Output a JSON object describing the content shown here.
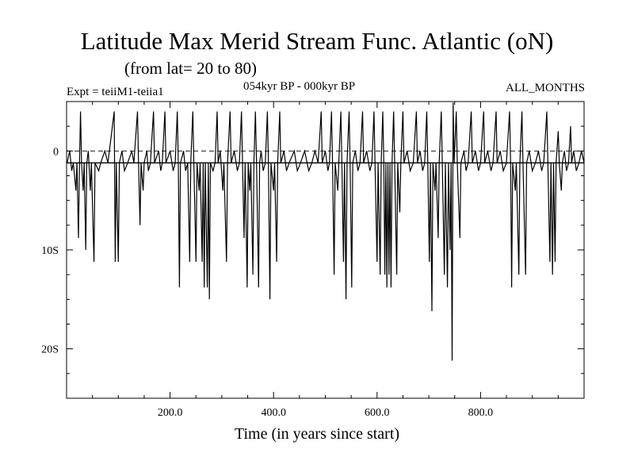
{
  "header": {
    "title": "Latitude Max Merid Stream Func. Atlantic (oN)",
    "subtitle": "(from lat= 20 to 80)",
    "experiment": "Expt = teiiM1-teiia1",
    "period": "054kyr BP - 000kyr BP",
    "months": "ALL_MONTHS"
  },
  "chart_data": {
    "type": "line",
    "xlabel": "Time (in years since start)",
    "ylabel": "",
    "xlim": [
      0,
      1000
    ],
    "ylim": [
      -25,
      5
    ],
    "x_ticks": [
      200,
      400,
      600,
      800
    ],
    "x_tick_labels": [
      "200.0",
      "400.0",
      "600.0",
      "800.0"
    ],
    "y_ticks": [
      0,
      -10,
      -20
    ],
    "y_tick_labels": [
      "0",
      "10S",
      "20S"
    ],
    "reference_lines": {
      "dashed_at": 0,
      "solid_at": -1.2
    },
    "series": [
      {
        "values": [
          [
            1,
            -1.2
          ],
          [
            6,
            0
          ],
          [
            10,
            -2
          ],
          [
            13,
            -1.2
          ],
          [
            18,
            -4
          ],
          [
            20,
            -1.2
          ],
          [
            23,
            -8.8
          ],
          [
            25,
            -1.2
          ],
          [
            27,
            4
          ],
          [
            29,
            -1.2
          ],
          [
            32,
            -4
          ],
          [
            34,
            -1.2
          ],
          [
            37,
            -10
          ],
          [
            39,
            -1.2
          ],
          [
            42,
            0
          ],
          [
            46,
            -4
          ],
          [
            48,
            -1.2
          ],
          [
            53,
            -11.2
          ],
          [
            55,
            -1.2
          ],
          [
            62,
            -2
          ],
          [
            66,
            -1.2
          ],
          [
            74,
            0
          ],
          [
            80,
            -1.2
          ],
          [
            92,
            4
          ],
          [
            94,
            -11.2
          ],
          [
            96,
            -1.2
          ],
          [
            100,
            -11.2
          ],
          [
            102,
            -1.2
          ],
          [
            107,
            0
          ],
          [
            112,
            -2
          ],
          [
            118,
            -1.2
          ],
          [
            126,
            0
          ],
          [
            130,
            -1.2
          ],
          [
            137,
            4
          ],
          [
            139,
            -1.2
          ],
          [
            142,
            -7.5
          ],
          [
            144,
            -1.2
          ],
          [
            148,
            -4
          ],
          [
            150,
            -1.2
          ],
          [
            155,
            0
          ],
          [
            158,
            -2
          ],
          [
            162,
            -1.2
          ],
          [
            168,
            4
          ],
          [
            170,
            -1.2
          ],
          [
            178,
            0
          ],
          [
            182,
            -2
          ],
          [
            185,
            -1.2
          ],
          [
            190,
            4
          ],
          [
            192,
            -1.2
          ],
          [
            200,
            0
          ],
          [
            206,
            -2
          ],
          [
            210,
            -1.2
          ],
          [
            214,
            4
          ],
          [
            216,
            -1.2
          ],
          [
            218,
            -13.8
          ],
          [
            220,
            -1.2
          ],
          [
            226,
            0
          ],
          [
            230,
            -2
          ],
          [
            234,
            -1.2
          ],
          [
            238,
            -11.2
          ],
          [
            240,
            -1.2
          ],
          [
            244,
            4
          ],
          [
            246,
            -1.2
          ],
          [
            250,
            -11.2
          ],
          [
            252,
            -1.2
          ],
          [
            256,
            -4
          ],
          [
            258,
            -1.2
          ],
          [
            262,
            -11.2
          ],
          [
            264,
            -1.2
          ],
          [
            266,
            -13.8
          ],
          [
            268,
            -1.2
          ],
          [
            272,
            -13.8
          ],
          [
            274,
            -1.2
          ],
          [
            276,
            -15
          ],
          [
            278,
            -1.2
          ],
          [
            283,
            -2
          ],
          [
            287,
            -1.2
          ],
          [
            291,
            4
          ],
          [
            293,
            -1.2
          ],
          [
            297,
            0
          ],
          [
            302,
            -4
          ],
          [
            304,
            -1.2
          ],
          [
            309,
            -11.2
          ],
          [
            311,
            -1.2
          ],
          [
            316,
            4
          ],
          [
            318,
            -1.2
          ],
          [
            324,
            0
          ],
          [
            330,
            -2
          ],
          [
            334,
            -1.2
          ],
          [
            338,
            4
          ],
          [
            340,
            -1.2
          ],
          [
            343,
            -8.8
          ],
          [
            345,
            -1.2
          ],
          [
            349,
            -13.8
          ],
          [
            351,
            -1.2
          ],
          [
            354,
            -4
          ],
          [
            356,
            -1.2
          ],
          [
            360,
            -12.5
          ],
          [
            362,
            -1.2
          ],
          [
            365,
            4
          ],
          [
            367,
            -1.2
          ],
          [
            371,
            -13.8
          ],
          [
            373,
            -1.2
          ],
          [
            376,
            0
          ],
          [
            380,
            -2
          ],
          [
            384,
            -1.2
          ],
          [
            388,
            4
          ],
          [
            390,
            -1.2
          ],
          [
            393,
            -15
          ],
          [
            395,
            -1.2
          ],
          [
            400,
            -4
          ],
          [
            402,
            -1.2
          ],
          [
            406,
            -11.2
          ],
          [
            408,
            -1.2
          ],
          [
            412,
            4
          ],
          [
            414,
            -1.2
          ],
          [
            420,
            0
          ],
          [
            425,
            -2
          ],
          [
            430,
            -1.2
          ],
          [
            440,
            0
          ],
          [
            446,
            -2
          ],
          [
            452,
            -1.2
          ],
          [
            460,
            0
          ],
          [
            468,
            -2
          ],
          [
            474,
            -1.2
          ],
          [
            480,
            0
          ],
          [
            486,
            -1.2
          ],
          [
            492,
            4
          ],
          [
            494,
            -1.2
          ],
          [
            500,
            0
          ],
          [
            505,
            -2
          ],
          [
            508,
            -1.2
          ],
          [
            512,
            4
          ],
          [
            514,
            -1.2
          ],
          [
            517,
            -12.5
          ],
          [
            519,
            -1.2
          ],
          [
            524,
            -4
          ],
          [
            526,
            -1.2
          ],
          [
            530,
            4
          ],
          [
            532,
            -1.2
          ],
          [
            535,
            -11.2
          ],
          [
            537,
            -1.2
          ],
          [
            540,
            -15
          ],
          [
            542,
            -1.2
          ],
          [
            546,
            4
          ],
          [
            548,
            -1.2
          ],
          [
            551,
            -13.8
          ],
          [
            553,
            -1.2
          ],
          [
            558,
            0
          ],
          [
            563,
            -2
          ],
          [
            567,
            -1.2
          ],
          [
            572,
            4
          ],
          [
            574,
            -1.2
          ],
          [
            580,
            0
          ],
          [
            586,
            -2
          ],
          [
            590,
            -1.2
          ],
          [
            594,
            4
          ],
          [
            596,
            -1.2
          ],
          [
            600,
            -11.2
          ],
          [
            602,
            -1.2
          ],
          [
            606,
            -12.5
          ],
          [
            608,
            -1.2
          ],
          [
            611,
            4
          ],
          [
            613,
            -1.2
          ],
          [
            615,
            -12.5
          ],
          [
            617,
            -1.2
          ],
          [
            619,
            -13.8
          ],
          [
            621,
            -1.2
          ],
          [
            623,
            -12.5
          ],
          [
            625,
            -1.2
          ],
          [
            627,
            -13.8
          ],
          [
            629,
            -1.2
          ],
          [
            632,
            4
          ],
          [
            634,
            -1.2
          ],
          [
            638,
            -12.5
          ],
          [
            640,
            -1.2
          ],
          [
            644,
            -6.2
          ],
          [
            646,
            -1.2
          ],
          [
            650,
            4
          ],
          [
            652,
            -1.2
          ],
          [
            658,
            0
          ],
          [
            664,
            -2
          ],
          [
            670,
            -1.2
          ],
          [
            676,
            4
          ],
          [
            678,
            -1.2
          ],
          [
            683,
            0
          ],
          [
            688,
            -2
          ],
          [
            692,
            -1.2
          ],
          [
            696,
            4
          ],
          [
            698,
            -1.2
          ],
          [
            701,
            -11.2
          ],
          [
            703,
            -1.2
          ],
          [
            706,
            -16.2
          ],
          [
            708,
            -1.2
          ],
          [
            712,
            -4
          ],
          [
            714,
            -1.2
          ],
          [
            718,
            -8.8
          ],
          [
            720,
            -1.2
          ],
          [
            724,
            4
          ],
          [
            726,
            -1.2
          ],
          [
            730,
            -12.5
          ],
          [
            732,
            -1.2
          ],
          [
            736,
            -13.8
          ],
          [
            738,
            -1.2
          ],
          [
            741,
            -10
          ],
          [
            743,
            -1.2
          ],
          [
            745,
            -21.2
          ],
          [
            747,
            4.9
          ],
          [
            749,
            -1.2
          ],
          [
            753,
            4
          ],
          [
            755,
            -1.2
          ],
          [
            760,
            -8.8
          ],
          [
            762,
            -1.2
          ],
          [
            768,
            0
          ],
          [
            772,
            -2
          ],
          [
            776,
            -1.2
          ],
          [
            782,
            4
          ],
          [
            784,
            -1.2
          ],
          [
            790,
            0
          ],
          [
            796,
            -2
          ],
          [
            800,
            -1.2
          ],
          [
            806,
            4
          ],
          [
            808,
            -1.2
          ],
          [
            814,
            0
          ],
          [
            820,
            -2
          ],
          [
            824,
            -1.2
          ],
          [
            830,
            4
          ],
          [
            832,
            -1.2
          ],
          [
            838,
            0
          ],
          [
            844,
            -2
          ],
          [
            850,
            -1.2
          ],
          [
            856,
            4
          ],
          [
            858,
            -1.2
          ],
          [
            860,
            -13.8
          ],
          [
            862,
            -1.2
          ],
          [
            867,
            -4
          ],
          [
            869,
            -1.2
          ],
          [
            874,
            -12.5
          ],
          [
            876,
            -1.2
          ],
          [
            880,
            4
          ],
          [
            882,
            -1.2
          ],
          [
            887,
            -12.5
          ],
          [
            889,
            -1.2
          ],
          [
            894,
            0
          ],
          [
            900,
            -2
          ],
          [
            906,
            -1.2
          ],
          [
            912,
            0
          ],
          [
            918,
            -2
          ],
          [
            922,
            -1.2
          ],
          [
            928,
            4
          ],
          [
            930,
            -1.2
          ],
          [
            934,
            -11.2
          ],
          [
            936,
            -1.2
          ],
          [
            939,
            -12.5
          ],
          [
            941,
            -1.2
          ],
          [
            944,
            -11.2
          ],
          [
            946,
            -1.2
          ],
          [
            950,
            2
          ],
          [
            952,
            -1.2
          ],
          [
            956,
            -4
          ],
          [
            958,
            -1.2
          ],
          [
            962,
            0
          ],
          [
            966,
            -2
          ],
          [
            970,
            -1.2
          ],
          [
            974,
            2.5
          ],
          [
            976,
            -1.2
          ],
          [
            980,
            0
          ],
          [
            985,
            -2
          ],
          [
            990,
            -1.2
          ],
          [
            995,
            0
          ],
          [
            1000,
            -1.2
          ]
        ]
      }
    ]
  }
}
